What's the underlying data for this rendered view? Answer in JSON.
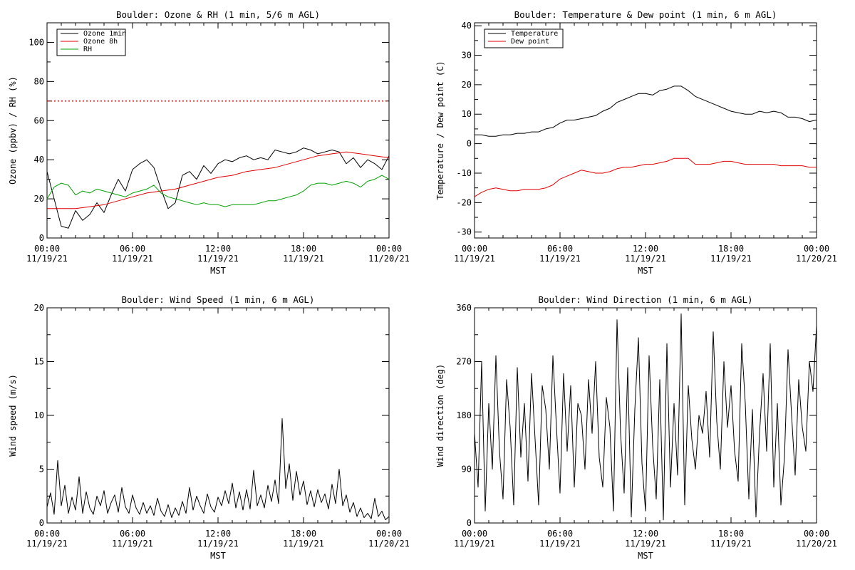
{
  "chart_data": [
    {
      "type": "line",
      "title": "Boulder: Ozone & RH (1 min, 5/6 m AGL)",
      "xlabel": "MST",
      "ylabel": "Ozone (ppbv) / RH (%)",
      "xlim": [
        0,
        24
      ],
      "ylim": [
        0,
        110
      ],
      "yticks": [
        0,
        20,
        40,
        60,
        80,
        100
      ],
      "xticks": [
        {
          "x": 0,
          "time": "00:00",
          "date": "11/19/21"
        },
        {
          "x": 6,
          "time": "06:00",
          "date": "11/19/21"
        },
        {
          "x": 12,
          "time": "12:00",
          "date": "11/19/21"
        },
        {
          "x": 18,
          "time": "18:00",
          "date": "11/19/21"
        },
        {
          "x": 24,
          "time": "00:00",
          "date": "11/20/21"
        }
      ],
      "legend": {
        "position": "top-left",
        "entries": [
          "Ozone 1min",
          "Ozone 8h",
          "RH"
        ]
      },
      "reference_lines": [
        {
          "y": 70,
          "color": "#e00000",
          "style": "dotted"
        }
      ],
      "series": [
        {
          "name": "Ozone 1min",
          "color": "#000000",
          "x": [
            0,
            0.5,
            1,
            1.5,
            2,
            2.5,
            3,
            3.5,
            4,
            4.5,
            5,
            5.5,
            6,
            6.5,
            7,
            7.5,
            8,
            8.5,
            9,
            9.5,
            10,
            10.5,
            11,
            11.5,
            12,
            12.5,
            13,
            13.5,
            14,
            14.5,
            15,
            15.5,
            16,
            16.5,
            17,
            17.5,
            18,
            18.5,
            19,
            19.5,
            20,
            20.5,
            21,
            21.5,
            22,
            22.5,
            23,
            23.5,
            24
          ],
          "y": [
            34,
            20,
            6,
            5,
            14,
            9,
            12,
            18,
            13,
            22,
            30,
            24,
            35,
            38,
            40,
            36,
            25,
            15,
            18,
            32,
            34,
            30,
            37,
            33,
            38,
            40,
            39,
            41,
            42,
            40,
            41,
            40,
            45,
            44,
            43,
            44,
            46,
            45,
            43,
            44,
            45,
            44,
            38,
            41,
            36,
            40,
            38,
            35,
            42
          ]
        },
        {
          "name": "Ozone 8h",
          "color": "#e00000",
          "x": [
            0,
            1,
            2,
            3,
            4,
            5,
            6,
            7,
            8,
            9,
            10,
            11,
            12,
            13,
            14,
            15,
            16,
            17,
            18,
            19,
            20,
            21,
            22,
            23,
            24
          ],
          "y": [
            15,
            15,
            15,
            16,
            17,
            19,
            21,
            23,
            24,
            25,
            27,
            29,
            31,
            32,
            34,
            35,
            36,
            38,
            40,
            42,
            43,
            44,
            43,
            42,
            41
          ]
        },
        {
          "name": "RH",
          "color": "#00a000",
          "x": [
            0,
            0.5,
            1,
            1.5,
            2,
            2.5,
            3,
            3.5,
            4,
            4.5,
            5,
            5.5,
            6,
            6.5,
            7,
            7.5,
            8,
            8.5,
            9,
            9.5,
            10,
            10.5,
            11,
            11.5,
            12,
            12.5,
            13,
            13.5,
            14,
            14.5,
            15,
            15.5,
            16,
            16.5,
            17,
            17.5,
            18,
            18.5,
            19,
            19.5,
            20,
            20.5,
            21,
            21.5,
            22,
            22.5,
            23,
            23.5,
            24
          ],
          "y": [
            20,
            26,
            28,
            27,
            22,
            24,
            23,
            25,
            24,
            23,
            22,
            21,
            23,
            24,
            25,
            27,
            23,
            21,
            20,
            19,
            18,
            17,
            18,
            17,
            17,
            16,
            17,
            17,
            17,
            17,
            18,
            19,
            19,
            20,
            21,
            22,
            24,
            27,
            28,
            28,
            27,
            28,
            29,
            28,
            26,
            29,
            30,
            32,
            30
          ]
        }
      ]
    },
    {
      "type": "line",
      "title": "Boulder: Temperature & Dew point (1 min, 6 m AGL)",
      "xlabel": "MST",
      "ylabel": "Temperature / Dew point (C)",
      "xlim": [
        0,
        24
      ],
      "ylim": [
        -32,
        41
      ],
      "yticks": [
        -30,
        -20,
        -10,
        0,
        10,
        20,
        30,
        40
      ],
      "xticks": [
        {
          "x": 0,
          "time": "00:00",
          "date": "11/19/21"
        },
        {
          "x": 6,
          "time": "06:00",
          "date": "11/19/21"
        },
        {
          "x": 12,
          "time": "12:00",
          "date": "11/19/21"
        },
        {
          "x": 18,
          "time": "18:00",
          "date": "11/19/21"
        },
        {
          "x": 24,
          "time": "00:00",
          "date": "11/20/21"
        }
      ],
      "legend": {
        "position": "top-left",
        "entries": [
          "Temperature",
          "Dew point"
        ]
      },
      "reference_lines": [],
      "series": [
        {
          "name": "Temperature",
          "color": "#000000",
          "x": [
            0,
            0.5,
            1,
            1.5,
            2,
            2.5,
            3,
            3.5,
            4,
            4.5,
            5,
            5.5,
            6,
            6.5,
            7,
            7.5,
            8,
            8.5,
            9,
            9.5,
            10,
            10.5,
            11,
            11.5,
            12,
            12.5,
            13,
            13.5,
            14,
            14.5,
            15,
            15.5,
            16,
            16.5,
            17,
            17.5,
            18,
            18.5,
            19,
            19.5,
            20,
            20.5,
            21,
            21.5,
            22,
            22.5,
            23,
            23.5,
            24
          ],
          "y": [
            3,
            3,
            2.5,
            2.5,
            3,
            3,
            3.5,
            3.5,
            4,
            4,
            5,
            5.5,
            7,
            8,
            8,
            8.5,
            9,
            9.5,
            11,
            12,
            14,
            15,
            16,
            17,
            17,
            16.5,
            18,
            18.5,
            19.5,
            19.5,
            18,
            16,
            15,
            14,
            13,
            12,
            11,
            10.5,
            10,
            10,
            11,
            10.5,
            11,
            10.5,
            9,
            9,
            8.5,
            7.5,
            8
          ]
        },
        {
          "name": "Dew point",
          "color": "#e00000",
          "x": [
            0,
            0.5,
            1,
            1.5,
            2,
            2.5,
            3,
            3.5,
            4,
            4.5,
            5,
            5.5,
            6,
            6.5,
            7,
            7.5,
            8,
            8.5,
            9,
            9.5,
            10,
            10.5,
            11,
            11.5,
            12,
            12.5,
            13,
            13.5,
            14,
            14.5,
            15,
            15.5,
            16,
            16.5,
            17,
            17.5,
            18,
            18.5,
            19,
            19.5,
            20,
            20.5,
            21,
            21.5,
            22,
            22.5,
            23,
            23.5,
            24
          ],
          "y": [
            -18,
            -16.5,
            -15.5,
            -15,
            -15.5,
            -16,
            -16,
            -15.5,
            -15.5,
            -15.5,
            -15,
            -14,
            -12,
            -11,
            -10,
            -9,
            -9.5,
            -10,
            -10,
            -9.5,
            -8.5,
            -8,
            -8,
            -7.5,
            -7,
            -7,
            -6.5,
            -6,
            -5,
            -5,
            -5,
            -7,
            -7,
            -7,
            -6.5,
            -6,
            -6,
            -6.5,
            -7,
            -7,
            -7,
            -7,
            -7,
            -7.5,
            -7.5,
            -7.5,
            -7.5,
            -8,
            -8
          ]
        }
      ]
    },
    {
      "type": "line",
      "title": "Boulder: Wind Speed (1 min, 6 m AGL)",
      "xlabel": "MST",
      "ylabel": "Wind speed (m/s)",
      "xlim": [
        0,
        24
      ],
      "ylim": [
        0,
        20
      ],
      "yticks": [
        0,
        5,
        10,
        15,
        20
      ],
      "xticks": [
        {
          "x": 0,
          "time": "00:00",
          "date": "11/19/21"
        },
        {
          "x": 6,
          "time": "06:00",
          "date": "11/19/21"
        },
        {
          "x": 12,
          "time": "12:00",
          "date": "11/19/21"
        },
        {
          "x": 18,
          "time": "18:00",
          "date": "11/19/21"
        },
        {
          "x": 24,
          "time": "00:00",
          "date": "11/20/21"
        }
      ],
      "legend": null,
      "reference_lines": [],
      "series": [
        {
          "name": "",
          "color": "#000000",
          "x": [
            0,
            0.25,
            0.5,
            0.75,
            1,
            1.25,
            1.5,
            1.75,
            2,
            2.25,
            2.5,
            2.75,
            3,
            3.25,
            3.5,
            3.75,
            4,
            4.25,
            4.5,
            4.75,
            5,
            5.25,
            5.5,
            5.75,
            6,
            6.25,
            6.5,
            6.75,
            7,
            7.25,
            7.5,
            7.75,
            8,
            8.25,
            8.5,
            8.75,
            9,
            9.25,
            9.5,
            9.75,
            10,
            10.25,
            10.5,
            10.75,
            11,
            11.25,
            11.5,
            11.75,
            12,
            12.25,
            12.5,
            12.75,
            13,
            13.25,
            13.5,
            13.75,
            14,
            14.25,
            14.5,
            14.75,
            15,
            15.25,
            15.5,
            15.75,
            16,
            16.25,
            16.5,
            16.75,
            17,
            17.25,
            17.5,
            17.75,
            18,
            18.25,
            18.5,
            18.75,
            19,
            19.25,
            19.5,
            19.75,
            20,
            20.25,
            20.5,
            20.75,
            21,
            21.25,
            21.5,
            21.75,
            22,
            22.25,
            22.5,
            22.75,
            23,
            23.25,
            23.5,
            23.75,
            24
          ],
          "y": [
            1.5,
            2.8,
            0.8,
            5.8,
            1.6,
            3.5,
            0.9,
            2.4,
            1.2,
            4.3,
            0.9,
            2.9,
            1.4,
            0.8,
            2.5,
            1.6,
            3.0,
            0.9,
            1.9,
            2.6,
            1.0,
            3.3,
            1.5,
            0.9,
            2.6,
            1.4,
            0.8,
            1.9,
            0.9,
            1.6,
            0.7,
            2.3,
            1.1,
            0.6,
            1.7,
            0.5,
            1.4,
            0.7,
            2.0,
            0.9,
            3.3,
            1.2,
            2.5,
            1.6,
            0.9,
            2.7,
            1.5,
            1.0,
            2.4,
            1.6,
            3.0,
            1.8,
            3.7,
            1.4,
            2.9,
            1.2,
            3.1,
            1.3,
            4.9,
            1.6,
            2.6,
            1.4,
            3.5,
            2.0,
            4.0,
            1.8,
            9.7,
            3.2,
            5.5,
            2.1,
            4.8,
            2.6,
            3.9,
            1.7,
            3.0,
            1.5,
            3.1,
            1.9,
            2.7,
            1.3,
            3.6,
            1.8,
            5.0,
            1.6,
            2.6,
            1.0,
            1.9,
            0.6,
            1.4,
            0.5,
            0.9,
            0.4,
            2.3,
            0.6,
            1.1,
            0.3,
            0.6
          ]
        }
      ]
    },
    {
      "type": "line",
      "title": "Boulder: Wind Direction (1 min, 6 m AGL)",
      "xlabel": "MST",
      "ylabel": "Wind direction (deg)",
      "xlim": [
        0,
        24
      ],
      "ylim": [
        0,
        360
      ],
      "yticks": [
        0,
        90,
        180,
        270,
        360
      ],
      "xticks": [
        {
          "x": 0,
          "time": "00:00",
          "date": "11/19/21"
        },
        {
          "x": 6,
          "time": "06:00",
          "date": "11/19/21"
        },
        {
          "x": 12,
          "time": "12:00",
          "date": "11/19/21"
        },
        {
          "x": 18,
          "time": "18:00",
          "date": "11/19/21"
        },
        {
          "x": 24,
          "time": "00:00",
          "date": "11/20/21"
        }
      ],
      "legend": null,
      "reference_lines": [],
      "series": [
        {
          "name": "",
          "color": "#000000",
          "x": [
            0,
            0.25,
            0.5,
            0.75,
            1,
            1.25,
            1.5,
            1.75,
            2,
            2.25,
            2.5,
            2.75,
            3,
            3.25,
            3.5,
            3.75,
            4,
            4.25,
            4.5,
            4.75,
            5,
            5.25,
            5.5,
            5.75,
            6,
            6.25,
            6.5,
            6.75,
            7,
            7.25,
            7.5,
            7.75,
            8,
            8.25,
            8.5,
            8.75,
            9,
            9.25,
            9.5,
            9.75,
            10,
            10.25,
            10.5,
            10.75,
            11,
            11.25,
            11.5,
            11.75,
            12,
            12.25,
            12.5,
            12.75,
            13,
            13.25,
            13.5,
            13.75,
            14,
            14.25,
            14.5,
            14.75,
            15,
            15.25,
            15.5,
            15.75,
            16,
            16.25,
            16.5,
            16.75,
            17,
            17.25,
            17.5,
            17.75,
            18,
            18.25,
            18.5,
            18.75,
            19,
            19.25,
            19.5,
            19.75,
            20,
            20.25,
            20.5,
            20.75,
            21,
            21.25,
            21.5,
            21.75,
            22,
            22.25,
            22.5,
            22.75,
            23,
            23.25,
            23.5,
            23.75,
            24
          ],
          "y": [
            150,
            60,
            270,
            20,
            200,
            90,
            280,
            120,
            40,
            240,
            160,
            30,
            260,
            110,
            200,
            70,
            250,
            140,
            30,
            230,
            190,
            90,
            280,
            160,
            50,
            250,
            120,
            230,
            60,
            200,
            180,
            90,
            240,
            150,
            270,
            110,
            60,
            210,
            160,
            20,
            340,
            150,
            50,
            260,
            10,
            190,
            310,
            100,
            20,
            280,
            130,
            40,
            240,
            5,
            300,
            60,
            200,
            80,
            350,
            30,
            230,
            140,
            90,
            180,
            150,
            220,
            110,
            320,
            170,
            90,
            270,
            160,
            230,
            120,
            70,
            300,
            200,
            40,
            190,
            10,
            150,
            250,
            120,
            300,
            60,
            200,
            30,
            110,
            290,
            180,
            80,
            240,
            160,
            120,
            270,
            220,
            330
          ]
        }
      ]
    }
  ]
}
